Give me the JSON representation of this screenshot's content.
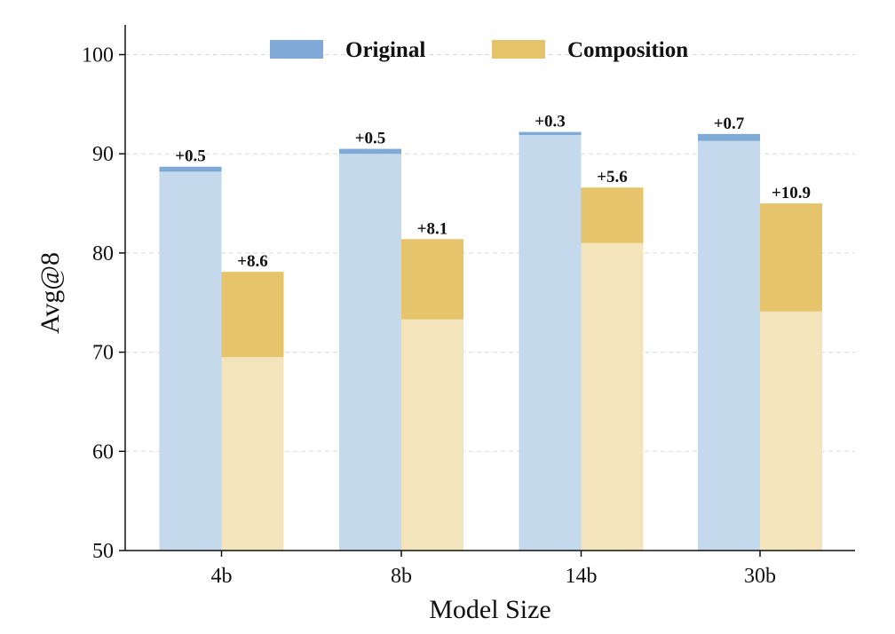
{
  "chart_data": {
    "type": "bar",
    "title": "",
    "xlabel": "Model Size",
    "ylabel": "Avg@8",
    "ylim": [
      50,
      103
    ],
    "yticks": [
      50,
      60,
      70,
      80,
      90,
      100
    ],
    "categories": [
      "4b",
      "8b",
      "14b",
      "30b"
    ],
    "legend": {
      "placement": "top-center",
      "entries": [
        "Original",
        "Composition"
      ]
    },
    "series": [
      {
        "name": "Original",
        "base_color": "#c5d9ec",
        "gain_color": "#7fa9d6",
        "base_values": [
          88.2,
          90.0,
          91.9,
          91.3
        ],
        "gains": [
          0.5,
          0.5,
          0.3,
          0.7
        ],
        "gain_labels": [
          "+0.5",
          "+0.5",
          "+0.3",
          "+0.7"
        ]
      },
      {
        "name": "Composition",
        "base_color": "#f3e4bb",
        "gain_color": "#e5c46b",
        "base_values": [
          69.5,
          73.3,
          81.0,
          74.1
        ],
        "gains": [
          8.6,
          8.1,
          5.6,
          10.9
        ],
        "gain_labels": [
          "+8.6",
          "+8.1",
          "+5.6",
          "+10.9"
        ]
      }
    ],
    "grid": true
  }
}
